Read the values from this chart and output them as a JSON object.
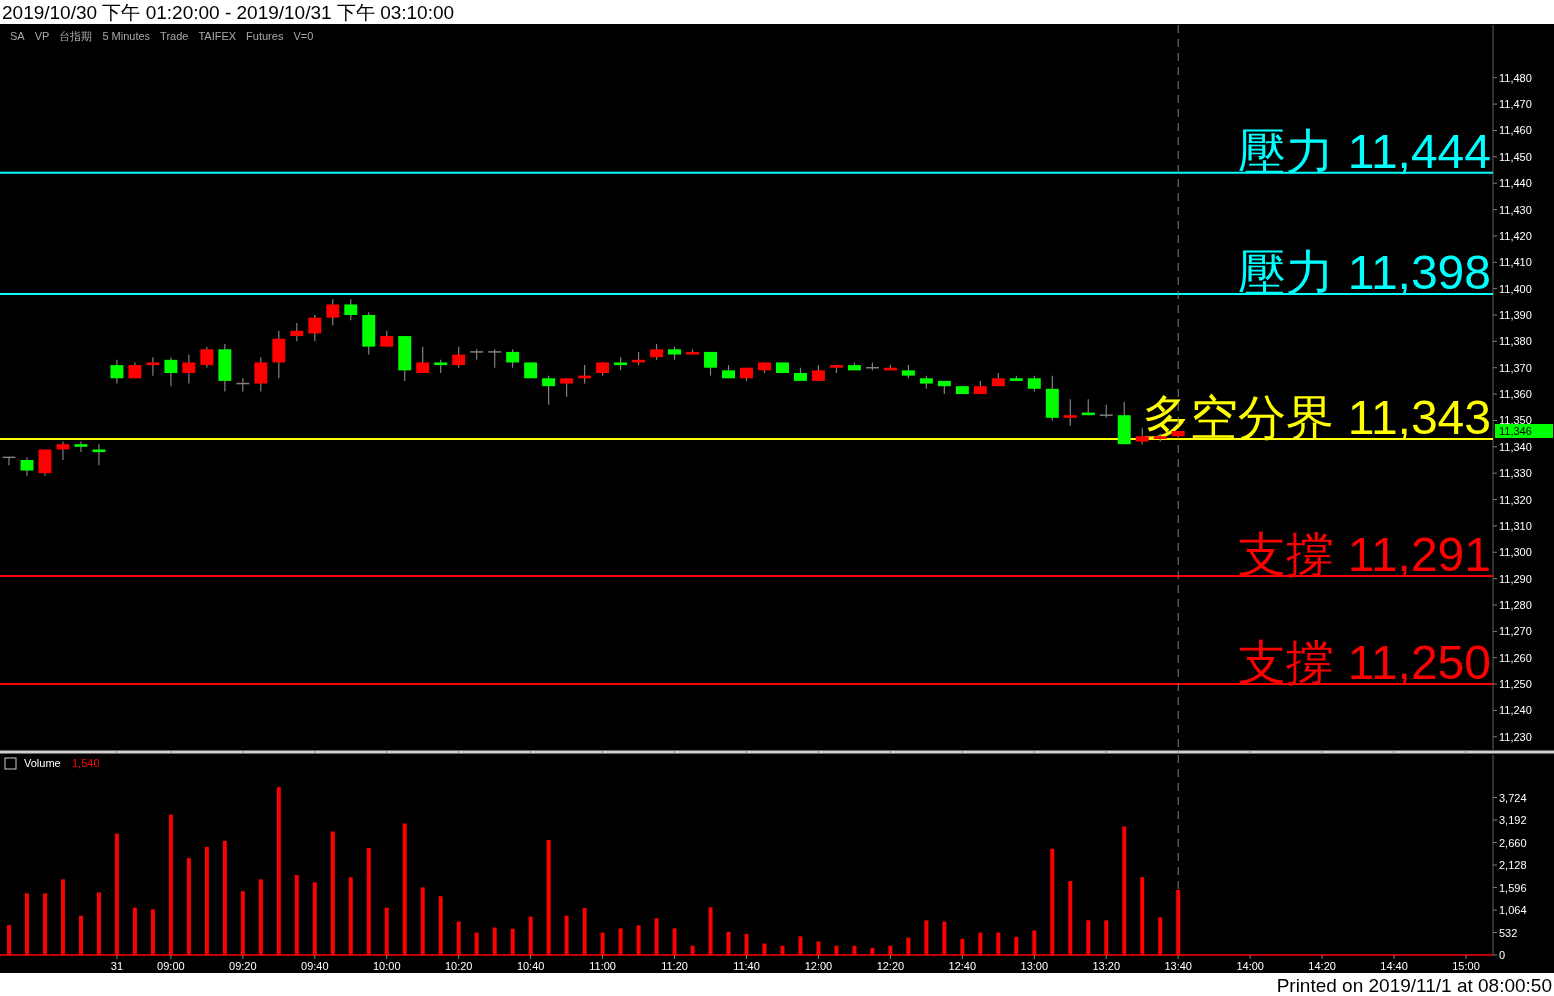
{
  "chart_data": [
    {
      "type": "candlestick",
      "title": "2019/10/30 下午 01:20:00 - 2019/10/31 下午 03:10:00",
      "categories": [
        null,
        null,
        null,
        null,
        null,
        null,
        "31",
        null,
        null,
        "09:00",
        null,
        null,
        null,
        "09:20",
        null,
        null,
        null,
        "09:40",
        null,
        null,
        null,
        "10:00",
        null,
        null,
        null,
        "10:20",
        null,
        null,
        null,
        "10:40",
        null,
        null,
        null,
        "11:00",
        null,
        null,
        null,
        "11:20",
        null,
        null,
        null,
        "11:40",
        null,
        null,
        null,
        "12:00",
        null,
        null,
        null,
        "12:20",
        null,
        null,
        null,
        "12:40",
        null,
        null,
        null,
        "13:00",
        null,
        null,
        null,
        "13:20",
        null,
        null,
        null,
        "13:40",
        null,
        null,
        null,
        "14:00",
        null,
        null,
        null,
        "14:20",
        null,
        null,
        null,
        "14:40",
        null,
        null,
        null,
        "15:00"
      ],
      "ohlc": [
        [
          11336,
          11336,
          11333,
          11336
        ],
        [
          11335,
          11336,
          11329,
          11331
        ],
        [
          11330,
          11339,
          11329,
          11339
        ],
        [
          11339,
          11342,
          11335,
          11341
        ],
        [
          11341,
          11342,
          11338,
          11340
        ],
        [
          11339,
          11341,
          11333,
          11338
        ],
        [
          11371,
          11373,
          11364,
          11366
        ],
        [
          11366,
          11372,
          11366,
          11371
        ],
        [
          11371,
          11374,
          11367,
          11372
        ],
        [
          11373,
          11374,
          11363,
          11368
        ],
        [
          11368,
          11375,
          11364,
          11372
        ],
        [
          11371,
          11378,
          11370,
          11377
        ],
        [
          11377,
          11379,
          11361,
          11365
        ],
        [
          11364,
          11366,
          11361,
          11364
        ],
        [
          11364,
          11374,
          11361,
          11372
        ],
        [
          11372,
          11384,
          11366,
          11381
        ],
        [
          11382,
          11387,
          11380,
          11384
        ],
        [
          11383,
          11390,
          11380,
          11389
        ],
        [
          11389,
          11396,
          11386,
          11394
        ],
        [
          11394,
          11396,
          11388,
          11390
        ],
        [
          11390,
          11391,
          11375,
          11378
        ],
        [
          11378,
          11384,
          11378,
          11382
        ],
        [
          11382,
          11382,
          11365,
          11369
        ],
        [
          11368,
          11378,
          11368,
          11372
        ],
        [
          11372,
          11373,
          11368,
          11371
        ],
        [
          11371,
          11378,
          11370,
          11375
        ],
        [
          11376,
          11377,
          11373,
          11376
        ],
        [
          11376,
          11377,
          11370,
          11376
        ],
        [
          11376,
          11377,
          11370,
          11372
        ],
        [
          11372,
          11372,
          11366,
          11366
        ],
        [
          11366,
          11367,
          11356,
          11363
        ],
        [
          11364,
          11366,
          11359,
          11366
        ],
        [
          11366,
          11371,
          11364,
          11367
        ],
        [
          11368,
          11372,
          11367,
          11372
        ],
        [
          11372,
          11374,
          11369,
          11371
        ],
        [
          11372,
          11376,
          11371,
          11373
        ],
        [
          11374,
          11379,
          11373,
          11377
        ],
        [
          11377,
          11378,
          11373,
          11375
        ],
        [
          11375,
          11377,
          11375,
          11376
        ],
        [
          11376,
          11376,
          11367,
          11370
        ],
        [
          11369,
          11371,
          11366,
          11366
        ],
        [
          11366,
          11370,
          11365,
          11370
        ],
        [
          11369,
          11372,
          11368,
          11372
        ],
        [
          11372,
          11372,
          11368,
          11368
        ],
        [
          11368,
          11370,
          11365,
          11365
        ],
        [
          11365,
          11371,
          11365,
          11369
        ],
        [
          11370,
          11371,
          11368,
          11371
        ],
        [
          11371,
          11372,
          11369,
          11369
        ],
        [
          11370,
          11372,
          11369,
          11370
        ],
        [
          11369,
          11371,
          11369,
          11370
        ],
        [
          11369,
          11371,
          11366,
          11367
        ],
        [
          11366,
          11367,
          11362,
          11364
        ],
        [
          11365,
          11365,
          11360,
          11363
        ],
        [
          11363,
          11363,
          11360,
          11360
        ],
        [
          11360,
          11365,
          11360,
          11363
        ],
        [
          11363,
          11368,
          11363,
          11366
        ],
        [
          11366,
          11367,
          11365,
          11365
        ],
        [
          11366,
          11367,
          11361,
          11362
        ],
        [
          11362,
          11367,
          11350,
          11351
        ],
        [
          11351,
          11358,
          11348,
          11352
        ],
        [
          11353,
          11358,
          11352,
          11352
        ],
        [
          11352,
          11356,
          11351,
          11352
        ],
        [
          11352,
          11357,
          11341,
          11341
        ],
        [
          11342,
          11347,
          11341,
          11344
        ],
        [
          11343,
          11345,
          11342,
          11344
        ],
        [
          11344,
          11346,
          11344,
          11346
        ],
        null,
        null,
        null,
        null,
        null,
        null,
        null,
        null,
        null,
        null,
        null,
        null,
        null,
        null,
        null,
        null
      ],
      "ylim": [
        11225,
        11500
      ],
      "yticks": [
        {
          "value": 11230,
          "label": "11,230"
        },
        {
          "value": 11240,
          "label": "11,240"
        },
        {
          "value": 11250,
          "label": "11,250"
        },
        {
          "value": 11260,
          "label": "11,260"
        },
        {
          "value": 11270,
          "label": "11,270"
        },
        {
          "value": 11280,
          "label": "11,280"
        },
        {
          "value": 11290,
          "label": "11,290"
        },
        {
          "value": 11300,
          "label": "11,300"
        },
        {
          "value": 11310,
          "label": "11,310"
        },
        {
          "value": 11320,
          "label": "11,320"
        },
        {
          "value": 11330,
          "label": "11,330"
        },
        {
          "value": 11340,
          "label": "11,340"
        },
        {
          "value": 11350,
          "label": "11,350"
        },
        {
          "value": 11360,
          "label": "11,360"
        },
        {
          "value": 11370,
          "label": "11,370"
        },
        {
          "value": 11380,
          "label": "11,380"
        },
        {
          "value": 11390,
          "label": "11,390"
        },
        {
          "value": 11400,
          "label": "11,400"
        },
        {
          "value": 11410,
          "label": "11,410"
        },
        {
          "value": 11420,
          "label": "11,420"
        },
        {
          "value": 11430,
          "label": "11,430"
        },
        {
          "value": 11440,
          "label": "11,440"
        },
        {
          "value": 11450,
          "label": "11,450"
        },
        {
          "value": 11460,
          "label": "11,460"
        },
        {
          "value": 11470,
          "label": "11,470"
        },
        {
          "value": 11480,
          "label": "11,480"
        }
      ],
      "tick_labels": "y",
      "ref_lines": [
        {
          "axis": "y",
          "value": 11444,
          "label": "壓力 11,444",
          "color": "#00ffff"
        },
        {
          "axis": "y",
          "value": 11398,
          "label": "壓力 11,398",
          "color": "#00ffff"
        },
        {
          "axis": "y",
          "value": 11343,
          "label": "多空分界 11,343",
          "color": "#ffff00"
        },
        {
          "axis": "y",
          "value": 11291,
          "label": "支撐 11,291",
          "color": "#ff0000"
        },
        {
          "axis": "y",
          "value": 11250,
          "label": "支撐 11,250",
          "color": "#ff0000"
        },
        {
          "axis": "x",
          "value": "13:40",
          "color": "#808080",
          "line_style": "dashed"
        }
      ],
      "annotations": [
        "SA",
        "VP",
        "台指期",
        "5 Minutes",
        "Trade",
        "TAIFEX",
        "Futures",
        "V=0",
        "11,346"
      ]
    },
    {
      "type": "bar",
      "title": "Volume",
      "color": "#ff0000",
      "categories": [
        null,
        null,
        null,
        null,
        null,
        null,
        "31",
        null,
        null,
        "09:00",
        null,
        null,
        null,
        "09:20",
        null,
        null,
        null,
        "09:40",
        null,
        null,
        null,
        "10:00",
        null,
        null,
        null,
        "10:20",
        null,
        null,
        null,
        "10:40",
        null,
        null,
        null,
        "11:00",
        null,
        null,
        null,
        "11:20",
        null,
        null,
        null,
        "11:40",
        null,
        null,
        null,
        "12:00",
        null,
        null,
        null,
        "12:20",
        null,
        null,
        null,
        "12:40",
        null,
        null,
        null,
        "13:00",
        null,
        null,
        null,
        "13:20",
        null,
        null,
        null,
        "13:40",
        null,
        null,
        null,
        "14:00",
        null,
        null,
        null,
        "14:20",
        null,
        null,
        null,
        "14:40",
        null,
        null,
        null,
        "15:00"
      ],
      "values": [
        710,
        1460,
        1460,
        1790,
        930,
        1480,
        2870,
        1120,
        1080,
        3320,
        2290,
        2560,
        2700,
        1510,
        1790,
        3970,
        1890,
        1720,
        2920,
        1840,
        2530,
        1120,
        3110,
        1600,
        1390,
        790,
        530,
        650,
        620,
        910,
        2720,
        930,
        1110,
        530,
        630,
        700,
        870,
        630,
        220,
        1130,
        550,
        500,
        270,
        220,
        440,
        320,
        220,
        220,
        170,
        220,
        410,
        820,
        790,
        380,
        530,
        530,
        430,
        580,
        2510,
        1750,
        820,
        820,
        3040,
        1840,
        890,
        1540,
        null,
        null,
        null,
        null,
        null,
        null,
        null,
        null,
        null,
        null,
        null,
        null,
        null,
        null,
        null,
        null
      ],
      "ylim": [
        0,
        4730
      ],
      "yticks": [
        0,
        {
          "value": 532,
          "label": "532"
        },
        {
          "value": 1064,
          "label": "1,064"
        },
        {
          "value": 1596,
          "label": "1,596"
        },
        {
          "value": 2128,
          "label": "2,128"
        },
        {
          "value": 2660,
          "label": "2,660"
        },
        {
          "value": 3192,
          "label": "3,192"
        },
        {
          "value": 3724,
          "label": "3,724"
        }
      ],
      "ref_lines": [
        {
          "axis": "x",
          "value": "13:40",
          "color": "#808080",
          "line_style": "dashed"
        }
      ],
      "annotations": [
        "1,540",
        "Printed on 2019/11/1 at 08:00:50"
      ]
    }
  ]
}
